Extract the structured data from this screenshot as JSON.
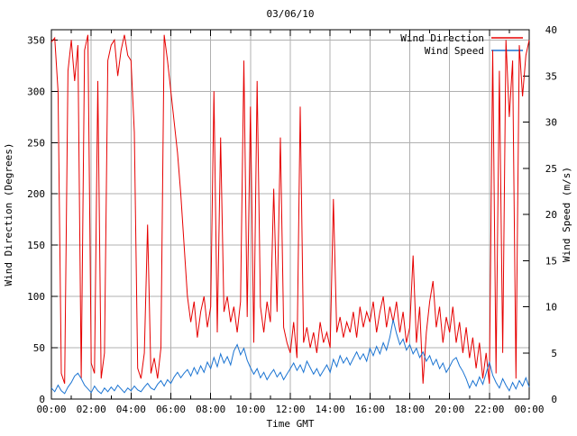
{
  "chart_data": {
    "type": "line",
    "title": "03/06/10",
    "xlabel": "Time GMT",
    "grid": true,
    "legend": {
      "position": "top-right-inside"
    },
    "colors": {
      "background": "#ffffff",
      "grid": "#b0b0b0",
      "border": "#000000",
      "text": "#000000"
    },
    "x_axis": {
      "tick_minutes": [
        0,
        120,
        240,
        360,
        480,
        600,
        720,
        840,
        960,
        1080,
        1200,
        1320,
        1440
      ],
      "tick_labels": [
        "00:00",
        "02:00",
        "04:00",
        "06:00",
        "08:00",
        "10:00",
        "12:00",
        "14:00",
        "16:00",
        "18:00",
        "20:00",
        "22:00",
        "00:00"
      ],
      "range_minutes": [
        0,
        1440
      ]
    },
    "y_left": {
      "label": "Wind Direction (Degrees)",
      "range": [
        0,
        360
      ],
      "ticks": [
        0,
        50,
        100,
        150,
        200,
        250,
        300,
        350
      ]
    },
    "y_right": {
      "label": "Wind Speed (m/s)",
      "range": [
        0,
        40
      ],
      "ticks": [
        0,
        5,
        10,
        15,
        20,
        25,
        30,
        35,
        40
      ]
    },
    "x_start_minute": 0,
    "x_step_minutes": 10,
    "series": [
      {
        "name": "Wind Direction",
        "color": "#e60000",
        "axis": "left",
        "unit": "degrees",
        "values": [
          348,
          352,
          300,
          25,
          15,
          320,
          350,
          310,
          345,
          20,
          340,
          355,
          35,
          25,
          310,
          20,
          45,
          330,
          345,
          350,
          315,
          340,
          355,
          335,
          330,
          260,
          30,
          20,
          45,
          170,
          25,
          40,
          20,
          50,
          355,
          330,
          300,
          270,
          240,
          200,
          150,
          100,
          75,
          95,
          60,
          85,
          100,
          70,
          90,
          300,
          65,
          255,
          85,
          100,
          75,
          90,
          65,
          95,
          330,
          80,
          285,
          55,
          310,
          90,
          65,
          95,
          75,
          205,
          85,
          255,
          70,
          55,
          45,
          75,
          40,
          285,
          55,
          70,
          50,
          65,
          45,
          75,
          55,
          65,
          50,
          195,
          65,
          80,
          60,
          75,
          65,
          85,
          60,
          90,
          70,
          85,
          75,
          95,
          65,
          85,
          100,
          70,
          90,
          75,
          95,
          65,
          85,
          55,
          70,
          140,
          55,
          90,
          15,
          65,
          95,
          115,
          70,
          90,
          55,
          80,
          65,
          90,
          55,
          75,
          45,
          70,
          40,
          60,
          30,
          55,
          20,
          45,
          15,
          340,
          25,
          320,
          45,
          350,
          275,
          330,
          20,
          345,
          295,
          335,
          350
        ]
      },
      {
        "name": "Wind Speed",
        "color": "#1b74d2",
        "axis": "right",
        "unit": "m/s",
        "values": [
          1.2,
          0.8,
          1.5,
          0.9,
          0.6,
          1.3,
          1.8,
          2.5,
          2.8,
          2.2,
          1.5,
          1.1,
          0.7,
          1.4,
          0.9,
          0.6,
          1.2,
          0.8,
          1.3,
          0.9,
          1.5,
          1.1,
          0.7,
          1.2,
          0.9,
          1.4,
          1.0,
          0.8,
          1.3,
          1.7,
          1.2,
          1.0,
          1.6,
          2.0,
          1.4,
          2.1,
          1.7,
          2.4,
          2.9,
          2.3,
          2.8,
          3.2,
          2.5,
          3.4,
          2.7,
          3.6,
          2.9,
          4.0,
          3.3,
          4.5,
          3.5,
          4.9,
          3.9,
          4.6,
          3.7,
          5.2,
          5.9,
          4.8,
          5.5,
          4.2,
          3.4,
          2.7,
          3.3,
          2.3,
          2.9,
          2.1,
          2.7,
          3.2,
          2.4,
          2.9,
          2.1,
          2.7,
          3.3,
          3.9,
          3.1,
          3.7,
          2.9,
          4.1,
          3.4,
          2.7,
          3.3,
          2.5,
          3.1,
          3.7,
          2.9,
          4.3,
          3.5,
          4.7,
          3.9,
          4.5,
          3.7,
          4.4,
          5.1,
          4.3,
          4.9,
          4.1,
          5.5,
          4.7,
          5.7,
          4.9,
          6.1,
          5.3,
          6.7,
          8.6,
          7.1,
          5.9,
          6.5,
          5.3,
          5.9,
          4.9,
          5.5,
          4.5,
          5.1,
          4.1,
          4.7,
          3.7,
          4.3,
          3.3,
          3.9,
          2.9,
          3.5,
          4.2,
          4.5,
          3.6,
          3.0,
          2.2,
          1.2,
          2.0,
          1.4,
          2.4,
          1.6,
          2.8,
          4.0,
          2.6,
          1.8,
          1.2,
          2.2,
          1.5,
          0.9,
          1.8,
          1.1,
          2.0,
          1.4,
          2.3,
          1.3
        ]
      }
    ]
  }
}
